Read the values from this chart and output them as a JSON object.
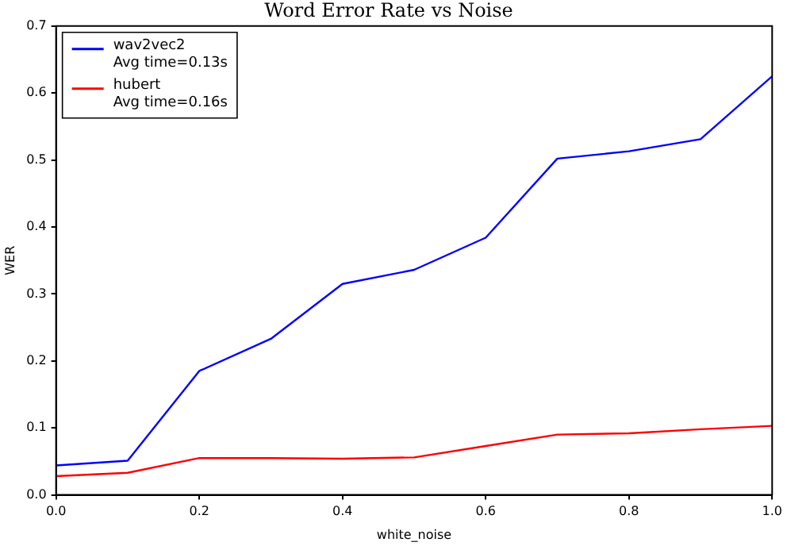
{
  "chart_data": {
    "type": "line",
    "title": "Word Error Rate vs Noise",
    "xlabel": "white_noise",
    "ylabel": "WER",
    "x": [
      0,
      0.1,
      0.2,
      0.3,
      0.4,
      0.5,
      0.6,
      0.7,
      0.8,
      0.9,
      1.0
    ],
    "series": [
      {
        "name": "wav2vec2\nAvg time=0.13s",
        "color": "#0000ff",
        "values": [
          0.044,
          0.051,
          0.185,
          0.233,
          0.315,
          0.336,
          0.384,
          0.502,
          0.513,
          0.531,
          0.625
        ]
      },
      {
        "name": "hubert\nAvg time=0.16s",
        "color": "#ff0000",
        "values": [
          0.028,
          0.033,
          0.055,
          0.055,
          0.054,
          0.056,
          0.073,
          0.09,
          0.092,
          0.098,
          0.103
        ]
      }
    ],
    "xlim": [
      0,
      1
    ],
    "xticks": [
      {
        "value": 0,
        "label": "0.0"
      },
      0.2,
      0.4,
      0.6,
      0.8,
      {
        "value": 1,
        "label": "1.0"
      }
    ],
    "ylim": [
      0,
      0.7
    ],
    "yticks": [
      {
        "value": 0,
        "label": "0.0"
      },
      0.1,
      0.2,
      0.3,
      0.4,
      0.5,
      0.6,
      0.7
    ],
    "grid": false,
    "legend": "top left",
    "marker": "none",
    "line_style": "solid"
  }
}
